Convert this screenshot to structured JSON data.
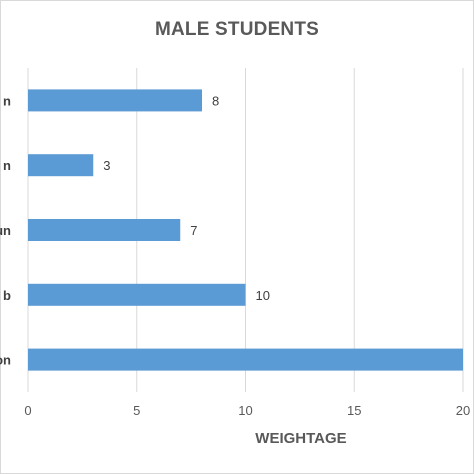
{
  "chart_data": {
    "type": "bar",
    "orientation": "horizontal",
    "title": "MALE STUDENTS",
    "xlabel": "WEIGHTAGE",
    "ylabel": "",
    "categories": [
      "n",
      "n",
      "un",
      "b",
      "on"
    ],
    "values": [
      8,
      3,
      7,
      10,
      20
    ],
    "xlim": [
      0,
      20
    ],
    "xticks": [
      "0",
      "5",
      "10",
      "15",
      "20"
    ],
    "grid": true,
    "bar_color": "#5b9bd5",
    "data_labels": [
      "8",
      "3",
      "7",
      "10",
      ""
    ]
  }
}
